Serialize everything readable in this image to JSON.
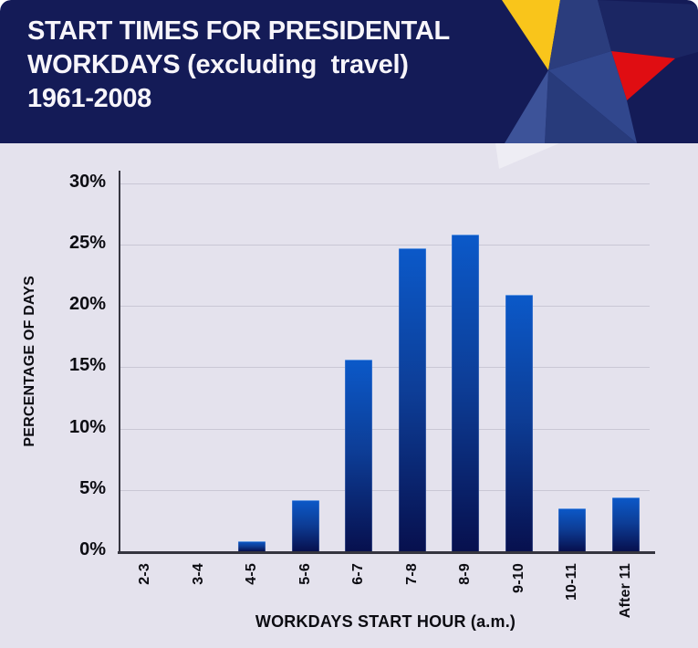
{
  "header": {
    "title_lines": [
      "START TIMES FOR PRESIDENTAL",
      "WORKDAYS (excluding  travel)",
      "1961-2008"
    ]
  },
  "chart_data": {
    "type": "bar",
    "title": "START TIMES FOR PRESIDENTAL WORKDAYS (excluding travel) 1961-2008",
    "categories": [
      "2-3",
      "3-4",
      "4-5",
      "5-6",
      "6-7",
      "7-8",
      "8-9",
      "9-10",
      "10-11",
      "After 11"
    ],
    "values": [
      0,
      0,
      0.8,
      4.2,
      15.6,
      24.7,
      25.8,
      20.9,
      3.5,
      4.4
    ],
    "xlabel": "WORKDAYS START HOUR (a.m.)",
    "ylabel": "PERCENTAGE OF DAYS",
    "ylim": [
      0,
      30
    ],
    "ytick_step": 5,
    "yticks": [
      "0%",
      "5%",
      "10%",
      "15%",
      "20%",
      "25%",
      "30%"
    ],
    "grid": true,
    "legend": false,
    "bar_orientation": "vertical",
    "x_label_rotation": "bottom-to-top"
  },
  "colors": {
    "header_bg": "#141b57",
    "title_text": "#f7f5fa",
    "panel_bg": "#e4e2ed",
    "gridline": "#c9c7d5",
    "axis": "#35353f",
    "text": "#0c0c12",
    "bar_top": "#0b59c9",
    "bar_mid": "#0d3d96",
    "bar_bottom": "#07104e",
    "star_yellow": "#f9c51b",
    "star_red": "#e00d12",
    "star_blue_bright": "#31478d",
    "star_blue_mid": "#2b3d7d",
    "star_blue_med": "#283b7b",
    "star_blue_light": "#3d5399",
    "star_blue_dark": "#1b2663"
  }
}
